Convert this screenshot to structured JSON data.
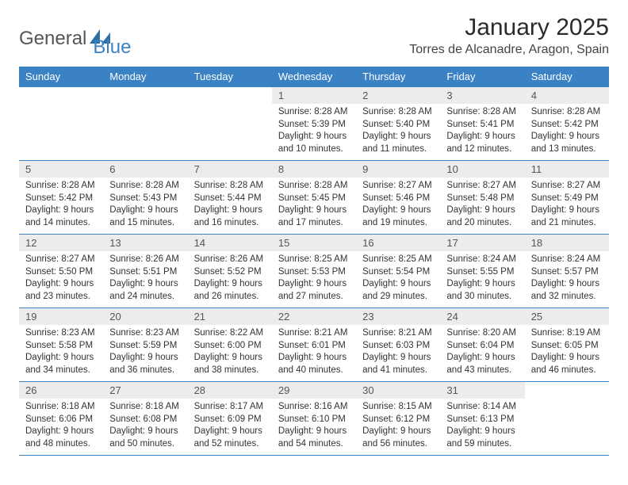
{
  "brand": {
    "part1": "General",
    "part2": "Blue"
  },
  "header": {
    "month_title": "January 2025",
    "location": "Torres de Alcanadre, Aragon, Spain"
  },
  "colors": {
    "accent": "#3b82c4",
    "header_row_bg": "#3b82c4",
    "header_row_text": "#ffffff",
    "daynum_bg": "#ececec",
    "rule": "#3b82c4"
  },
  "days_of_week": [
    "Sunday",
    "Monday",
    "Tuesday",
    "Wednesday",
    "Thursday",
    "Friday",
    "Saturday"
  ],
  "weeks": [
    [
      null,
      null,
      null,
      {
        "n": "1",
        "sr": "Sunrise: 8:28 AM",
        "ss": "Sunset: 5:39 PM",
        "d1": "Daylight: 9 hours",
        "d2": "and 10 minutes."
      },
      {
        "n": "2",
        "sr": "Sunrise: 8:28 AM",
        "ss": "Sunset: 5:40 PM",
        "d1": "Daylight: 9 hours",
        "d2": "and 11 minutes."
      },
      {
        "n": "3",
        "sr": "Sunrise: 8:28 AM",
        "ss": "Sunset: 5:41 PM",
        "d1": "Daylight: 9 hours",
        "d2": "and 12 minutes."
      },
      {
        "n": "4",
        "sr": "Sunrise: 8:28 AM",
        "ss": "Sunset: 5:42 PM",
        "d1": "Daylight: 9 hours",
        "d2": "and 13 minutes."
      }
    ],
    [
      {
        "n": "5",
        "sr": "Sunrise: 8:28 AM",
        "ss": "Sunset: 5:42 PM",
        "d1": "Daylight: 9 hours",
        "d2": "and 14 minutes."
      },
      {
        "n": "6",
        "sr": "Sunrise: 8:28 AM",
        "ss": "Sunset: 5:43 PM",
        "d1": "Daylight: 9 hours",
        "d2": "and 15 minutes."
      },
      {
        "n": "7",
        "sr": "Sunrise: 8:28 AM",
        "ss": "Sunset: 5:44 PM",
        "d1": "Daylight: 9 hours",
        "d2": "and 16 minutes."
      },
      {
        "n": "8",
        "sr": "Sunrise: 8:28 AM",
        "ss": "Sunset: 5:45 PM",
        "d1": "Daylight: 9 hours",
        "d2": "and 17 minutes."
      },
      {
        "n": "9",
        "sr": "Sunrise: 8:27 AM",
        "ss": "Sunset: 5:46 PM",
        "d1": "Daylight: 9 hours",
        "d2": "and 19 minutes."
      },
      {
        "n": "10",
        "sr": "Sunrise: 8:27 AM",
        "ss": "Sunset: 5:48 PM",
        "d1": "Daylight: 9 hours",
        "d2": "and 20 minutes."
      },
      {
        "n": "11",
        "sr": "Sunrise: 8:27 AM",
        "ss": "Sunset: 5:49 PM",
        "d1": "Daylight: 9 hours",
        "d2": "and 21 minutes."
      }
    ],
    [
      {
        "n": "12",
        "sr": "Sunrise: 8:27 AM",
        "ss": "Sunset: 5:50 PM",
        "d1": "Daylight: 9 hours",
        "d2": "and 23 minutes."
      },
      {
        "n": "13",
        "sr": "Sunrise: 8:26 AM",
        "ss": "Sunset: 5:51 PM",
        "d1": "Daylight: 9 hours",
        "d2": "and 24 minutes."
      },
      {
        "n": "14",
        "sr": "Sunrise: 8:26 AM",
        "ss": "Sunset: 5:52 PM",
        "d1": "Daylight: 9 hours",
        "d2": "and 26 minutes."
      },
      {
        "n": "15",
        "sr": "Sunrise: 8:25 AM",
        "ss": "Sunset: 5:53 PM",
        "d1": "Daylight: 9 hours",
        "d2": "and 27 minutes."
      },
      {
        "n": "16",
        "sr": "Sunrise: 8:25 AM",
        "ss": "Sunset: 5:54 PM",
        "d1": "Daylight: 9 hours",
        "d2": "and 29 minutes."
      },
      {
        "n": "17",
        "sr": "Sunrise: 8:24 AM",
        "ss": "Sunset: 5:55 PM",
        "d1": "Daylight: 9 hours",
        "d2": "and 30 minutes."
      },
      {
        "n": "18",
        "sr": "Sunrise: 8:24 AM",
        "ss": "Sunset: 5:57 PM",
        "d1": "Daylight: 9 hours",
        "d2": "and 32 minutes."
      }
    ],
    [
      {
        "n": "19",
        "sr": "Sunrise: 8:23 AM",
        "ss": "Sunset: 5:58 PM",
        "d1": "Daylight: 9 hours",
        "d2": "and 34 minutes."
      },
      {
        "n": "20",
        "sr": "Sunrise: 8:23 AM",
        "ss": "Sunset: 5:59 PM",
        "d1": "Daylight: 9 hours",
        "d2": "and 36 minutes."
      },
      {
        "n": "21",
        "sr": "Sunrise: 8:22 AM",
        "ss": "Sunset: 6:00 PM",
        "d1": "Daylight: 9 hours",
        "d2": "and 38 minutes."
      },
      {
        "n": "22",
        "sr": "Sunrise: 8:21 AM",
        "ss": "Sunset: 6:01 PM",
        "d1": "Daylight: 9 hours",
        "d2": "and 40 minutes."
      },
      {
        "n": "23",
        "sr": "Sunrise: 8:21 AM",
        "ss": "Sunset: 6:03 PM",
        "d1": "Daylight: 9 hours",
        "d2": "and 41 minutes."
      },
      {
        "n": "24",
        "sr": "Sunrise: 8:20 AM",
        "ss": "Sunset: 6:04 PM",
        "d1": "Daylight: 9 hours",
        "d2": "and 43 minutes."
      },
      {
        "n": "25",
        "sr": "Sunrise: 8:19 AM",
        "ss": "Sunset: 6:05 PM",
        "d1": "Daylight: 9 hours",
        "d2": "and 46 minutes."
      }
    ],
    [
      {
        "n": "26",
        "sr": "Sunrise: 8:18 AM",
        "ss": "Sunset: 6:06 PM",
        "d1": "Daylight: 9 hours",
        "d2": "and 48 minutes."
      },
      {
        "n": "27",
        "sr": "Sunrise: 8:18 AM",
        "ss": "Sunset: 6:08 PM",
        "d1": "Daylight: 9 hours",
        "d2": "and 50 minutes."
      },
      {
        "n": "28",
        "sr": "Sunrise: 8:17 AM",
        "ss": "Sunset: 6:09 PM",
        "d1": "Daylight: 9 hours",
        "d2": "and 52 minutes."
      },
      {
        "n": "29",
        "sr": "Sunrise: 8:16 AM",
        "ss": "Sunset: 6:10 PM",
        "d1": "Daylight: 9 hours",
        "d2": "and 54 minutes."
      },
      {
        "n": "30",
        "sr": "Sunrise: 8:15 AM",
        "ss": "Sunset: 6:12 PM",
        "d1": "Daylight: 9 hours",
        "d2": "and 56 minutes."
      },
      {
        "n": "31",
        "sr": "Sunrise: 8:14 AM",
        "ss": "Sunset: 6:13 PM",
        "d1": "Daylight: 9 hours",
        "d2": "and 59 minutes."
      },
      null
    ]
  ]
}
